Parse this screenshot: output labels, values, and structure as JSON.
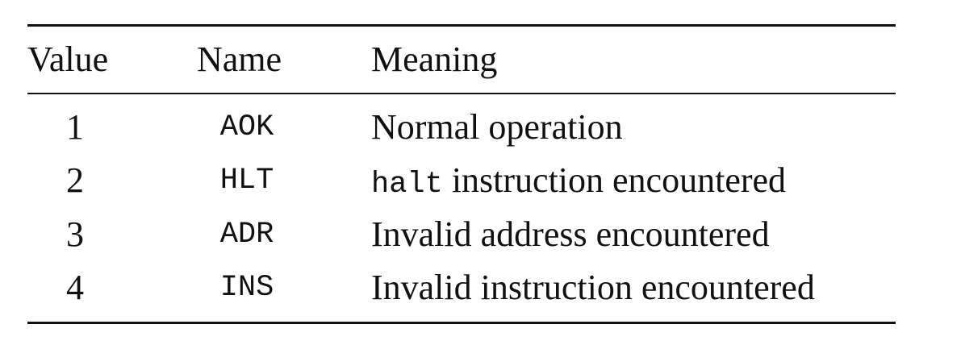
{
  "table": {
    "headers": {
      "value": "Value",
      "name": "Name",
      "meaning": "Meaning"
    },
    "rows": [
      {
        "value": "1",
        "name": "AOK",
        "meaning_code": "",
        "meaning": "Normal operation"
      },
      {
        "value": "2",
        "name": "HLT",
        "meaning_code": "halt",
        "meaning": " instruction encountered"
      },
      {
        "value": "3",
        "name": "ADR",
        "meaning_code": "",
        "meaning": "Invalid address encountered"
      },
      {
        "value": "4",
        "name": "INS",
        "meaning_code": "",
        "meaning": "Invalid instruction encountered"
      }
    ]
  }
}
